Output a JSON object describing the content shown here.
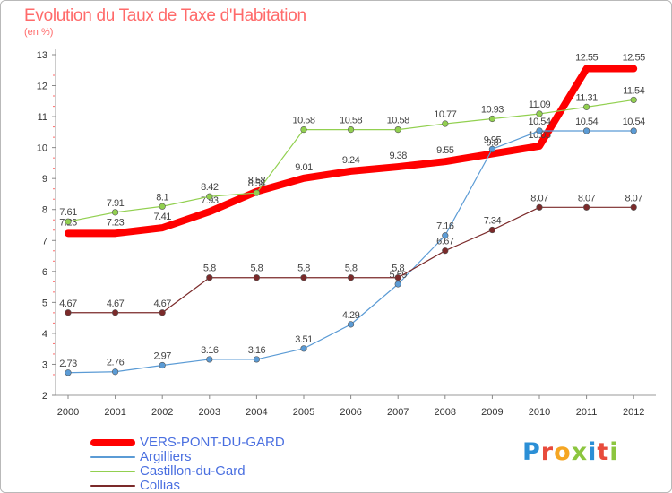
{
  "title": "Evolution du Taux de Taxe d'Habitation",
  "subtitle": "(en %)",
  "logo": {
    "text": "Proxiti",
    "colors": [
      "#2b8fd6",
      "#e84b3c",
      "#f5a623",
      "#8cc63f",
      "#2b8fd6",
      "#e84b3c",
      "#8cc63f"
    ]
  },
  "chart_data": {
    "type": "line",
    "x": [
      "2000",
      "2001",
      "2002",
      "2003",
      "2004",
      "2005",
      "2006",
      "2007",
      "2008",
      "2009",
      "2010",
      "2011",
      "2012"
    ],
    "ylim": [
      2,
      13
    ],
    "yticks": [
      2,
      3,
      4,
      5,
      6,
      7,
      8,
      9,
      10,
      11,
      12,
      13
    ],
    "grid": false,
    "legend_position": "bottom-left",
    "series": [
      {
        "name": "VERS-PONT-DU-GARD",
        "color": "#ff0000",
        "width": 8,
        "marker": false,
        "values": [
          7.23,
          7.23,
          7.41,
          7.93,
          8.58,
          9.01,
          9.24,
          9.38,
          9.55,
          9.8,
          10.05,
          12.55,
          12.55
        ],
        "labels": [
          "7.23",
          "7.23",
          "7.41",
          "7.93",
          "8.58",
          "9.01",
          "9.24",
          "9.38",
          "9.55",
          "9.8",
          "10.05",
          "12.55",
          "12.55"
        ]
      },
      {
        "name": "Argilliers",
        "color": "#5b9bd5",
        "width": 1.2,
        "marker": true,
        "values": [
          2.73,
          2.76,
          2.97,
          3.16,
          3.16,
          3.51,
          4.29,
          5.59,
          7.16,
          9.95,
          10.54,
          10.54,
          10.54
        ],
        "labels": [
          "2.73",
          "2.76",
          "2.97",
          "3.16",
          "3.16",
          "3.51",
          "4.29",
          "5.59",
          "7.16",
          "9.95",
          "10.54",
          "10.54",
          "10.54"
        ]
      },
      {
        "name": "Castillon-du-Gard",
        "color": "#92d050",
        "width": 1.2,
        "marker": true,
        "values": [
          7.61,
          7.91,
          8.1,
          8.42,
          8.54,
          10.58,
          10.58,
          10.58,
          10.77,
          10.93,
          11.09,
          11.31,
          11.54
        ],
        "labels": [
          "7.61",
          "7.91",
          "8.1",
          "8.42",
          "8.54",
          "10.58",
          "10.58",
          "10.58",
          "10.77",
          "10.93",
          "11.09",
          "11.31",
          "11.54"
        ]
      },
      {
        "name": "Collias",
        "color": "#7b2a2a",
        "width": 1.2,
        "marker": true,
        "values": [
          4.67,
          4.67,
          4.67,
          5.8,
          5.8,
          5.8,
          5.8,
          5.8,
          6.67,
          7.34,
          8.07,
          8.07,
          8.07
        ],
        "labels": [
          "4.67",
          "4.67",
          "4.67",
          "5.8",
          "5.8",
          "5.8",
          "5.8",
          "5.8",
          "6.67",
          "7.34",
          "8.07",
          "8.07",
          "8.07"
        ]
      }
    ]
  }
}
